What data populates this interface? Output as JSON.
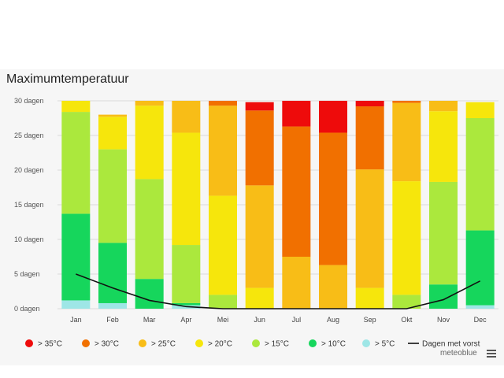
{
  "chart_data": {
    "type": "bar",
    "stacked": true,
    "title": "Maximumtemperatuur",
    "categories": [
      "Jan",
      "Feb",
      "Mar",
      "Apr",
      "Mei",
      "Jun",
      "Jul",
      "Aug",
      "Sep",
      "Okt",
      "Nov",
      "Dec"
    ],
    "y_ticks": [
      "0 dagen",
      "5 dagen",
      "10 dagen",
      "15 dagen",
      "20 dagen",
      "25 dagen",
      "30 dagen"
    ],
    "ylim": [
      0,
      30
    ],
    "series": [
      {
        "name": "> 5°C",
        "color": "#9ee6e6",
        "values": [
          1.2,
          0.8,
          0,
          0.5,
          0,
          0,
          0,
          0,
          0,
          0,
          0,
          0.5
        ]
      },
      {
        "name": "> 10°C",
        "color": "#16d65c",
        "values": [
          12.5,
          8.7,
          4.3,
          0.3,
          0,
          0,
          0,
          0,
          0,
          0,
          3.5,
          10.8
        ]
      },
      {
        "name": "> 15°C",
        "color": "#abe83d",
        "values": [
          14.7,
          13.5,
          14.4,
          8.4,
          2.0,
          0,
          0,
          0,
          0,
          2.0,
          14.8,
          16.2
        ]
      },
      {
        "name": "> 20°C",
        "color": "#f6e60c",
        "values": [
          1.6,
          4.7,
          10.6,
          16.2,
          14.3,
          3.0,
          0,
          0,
          3.0,
          16.4,
          10.2,
          2.3
        ]
      },
      {
        "name": "> 25°C",
        "color": "#f8bd17",
        "values": [
          0,
          0.3,
          0.7,
          4.6,
          13.0,
          14.8,
          7.5,
          6.3,
          17.1,
          11.3,
          1.5,
          0
        ]
      },
      {
        "name": "> 30°C",
        "color": "#f17000",
        "values": [
          0,
          0,
          0,
          0,
          0.7,
          10.8,
          18.8,
          19.1,
          9.1,
          0.3,
          0,
          0
        ]
      },
      {
        "name": "> 35°C",
        "color": "#ee0b0b",
        "values": [
          0,
          0,
          0,
          0,
          0,
          1.2,
          3.7,
          4.6,
          0.8,
          0,
          0,
          0
        ]
      }
    ],
    "line": {
      "name": "Dagen met vorst",
      "color": "#111111",
      "values": [
        5.0,
        3.0,
        1.2,
        0.3,
        0,
        0,
        0,
        0,
        0,
        0,
        1.3,
        4.0
      ]
    },
    "legend": [
      {
        "label": "> 35°C",
        "color": "#ee0b0b",
        "kind": "dot"
      },
      {
        "label": "> 30°C",
        "color": "#f17000",
        "kind": "dot"
      },
      {
        "label": "> 25°C",
        "color": "#f8bd17",
        "kind": "dot"
      },
      {
        "label": "> 20°C",
        "color": "#f6e60c",
        "kind": "dot"
      },
      {
        "label": "> 15°C",
        "color": "#abe83d",
        "kind": "dot"
      },
      {
        "label": "> 10°C",
        "color": "#16d65c",
        "kind": "dot"
      },
      {
        "label": "> 5°C",
        "color": "#9ee6e6",
        "kind": "dot"
      },
      {
        "label": "Dagen met vorst",
        "color": "#111111",
        "kind": "line"
      }
    ],
    "legend_position": "bottom"
  },
  "brand": "meteoblue"
}
